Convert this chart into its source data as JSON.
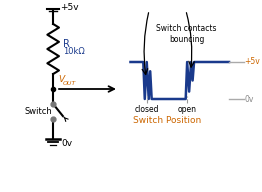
{
  "bg_color": "#ffffff",
  "circuit_color": "#000000",
  "waveform_color": "#1a3a8c",
  "label_color_blue": "#1a3a8c",
  "label_color_orange": "#cc6600",
  "resistor_label": "R",
  "resistor_value": "10kΩ",
  "vcc_label": "+5v",
  "gnd_label": "0v",
  "vout_label": "VOUT",
  "switch_label": "Switch",
  "switch_contacts_label": "Switch contacts\nbouncing",
  "switch_position_label": "Switch Position",
  "closed_label": "closed",
  "open_label": "open",
  "plus5v_label": "+5v",
  "zerov_label": "0v",
  "vout_subscript": "OUT"
}
